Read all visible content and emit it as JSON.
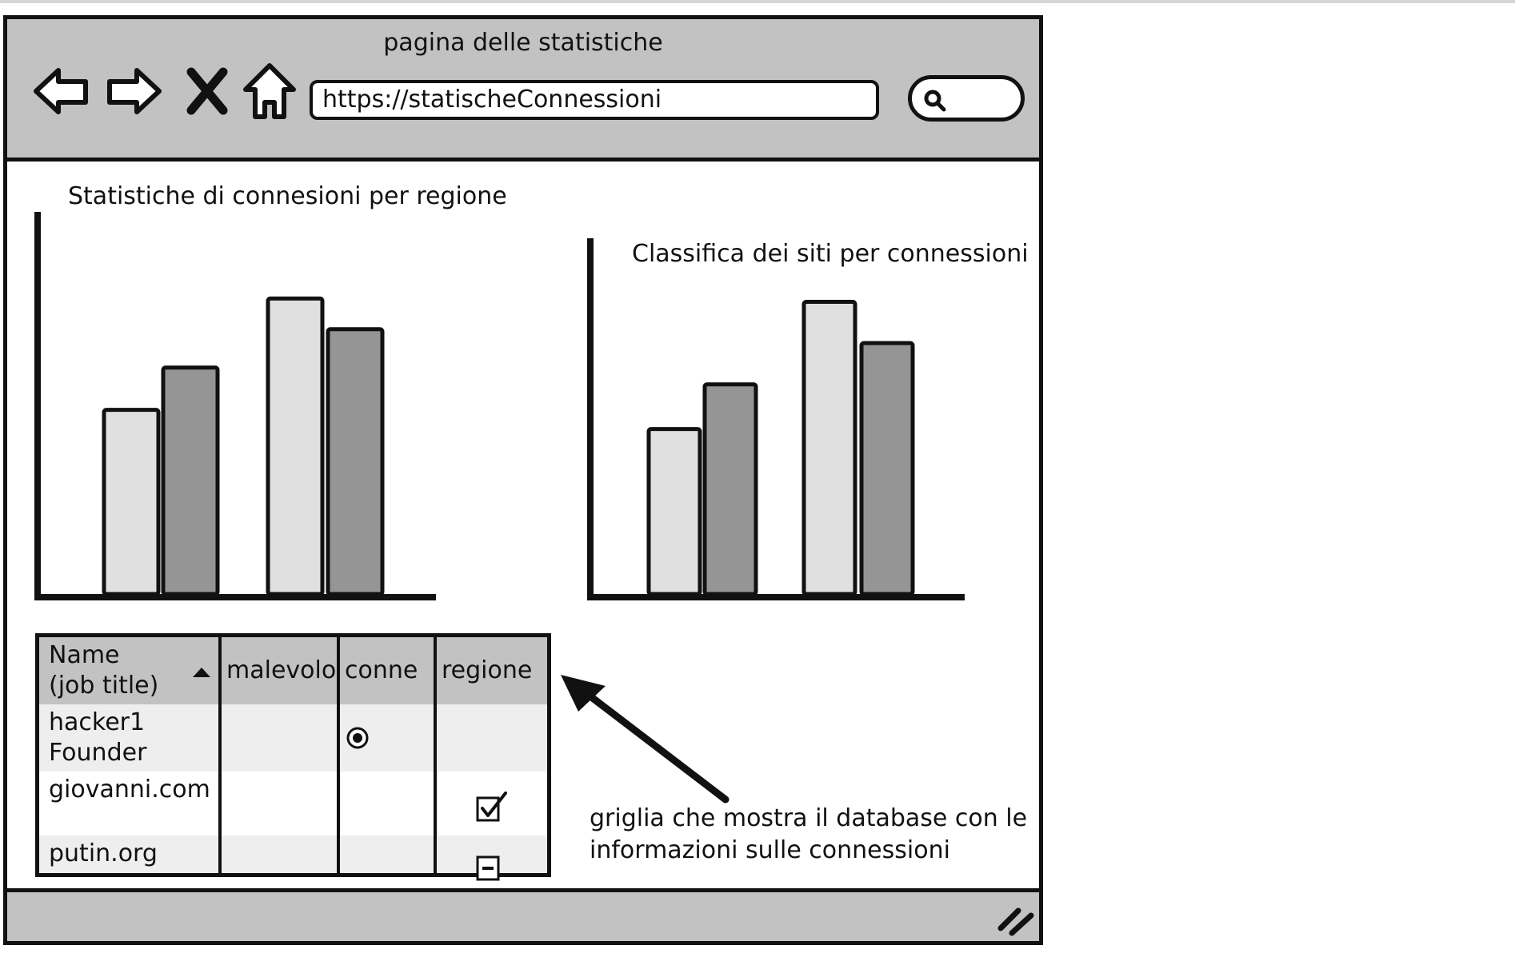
{
  "window": {
    "title": "pagina delle statistiche",
    "url": "https://statischeConnessioni"
  },
  "icons": {
    "back": "back-arrow-icon",
    "forward": "forward-arrow-icon",
    "stop": "close-icon",
    "home": "home-icon",
    "search": "search-icon",
    "resize": "resize-grip-icon"
  },
  "chart_data": [
    {
      "type": "bar",
      "title": "Statistiche di connesioni per regione",
      "values": [
        48,
        59,
        77,
        69
      ],
      "colors": [
        "#e0e0e0",
        "#959595",
        "#e0e0e0",
        "#959595"
      ],
      "ylim": [
        0,
        100
      ]
    },
    {
      "type": "bar",
      "title": "Classifica dei siti per connessioni",
      "values": [
        48,
        61,
        85,
        73
      ],
      "colors": [
        "#e0e0e0",
        "#959595",
        "#e0e0e0",
        "#959595"
      ],
      "ylim": [
        0,
        100
      ]
    }
  ],
  "grid": {
    "columns": [
      "Name\n(job title)",
      "malevolo",
      "conne",
      "regione"
    ],
    "rows": [
      {
        "name": "hacker1\nFounder",
        "malevolo": "",
        "conne": "radio-selected",
        "regione": ""
      },
      {
        "name": "giovanni.com",
        "malevolo": "",
        "conne": "",
        "regione": "checkbox-checked"
      },
      {
        "name": "putin.org",
        "malevolo": "",
        "conne": "",
        "regione": "checkbox-indeterminate"
      }
    ]
  },
  "annotation": {
    "text": "griglia che mostra il database con le informazioni sulle connessioni"
  }
}
